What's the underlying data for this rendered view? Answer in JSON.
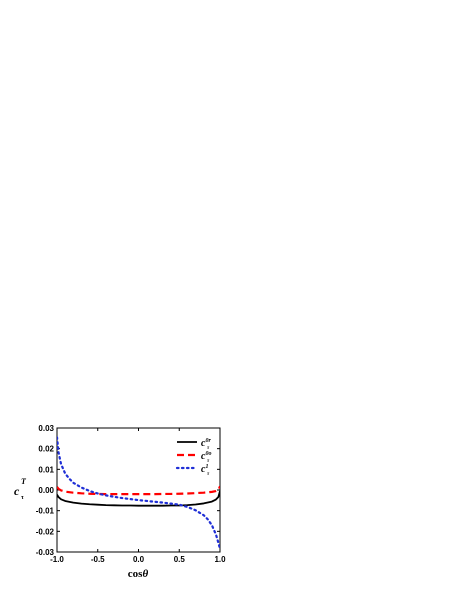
{
  "chart_data": {
    "type": "line",
    "xlabel": "cosθ",
    "xlabel_parts": {
      "base": "cos",
      "symbol": "θ"
    },
    "ylabel": "c_τ^T",
    "ylabel_parts": {
      "base": "c",
      "sub": "τ",
      "sup": "T"
    },
    "xlim": [
      -1.0,
      1.0
    ],
    "ylim": [
      -0.03,
      0.03
    ],
    "x_ticks": [
      "-1.0",
      "-0.5",
      "0.0",
      "0.5",
      "1.0"
    ],
    "x_tick_values": [
      -1.0,
      -0.5,
      0.0,
      0.5,
      1.0
    ],
    "y_ticks": [
      "0.03",
      "0.02",
      "0.01",
      "0.00",
      "-0.01",
      "-0.02",
      "-0.03"
    ],
    "y_tick_values": [
      0.03,
      0.02,
      0.01,
      0.0,
      -0.01,
      -0.02,
      -0.03
    ],
    "legend_position": "top-right",
    "grid": false,
    "series": [
      {
        "name": "c_τ^0r",
        "label_base": "c",
        "label_sub": "τ",
        "label_sup": "0r",
        "color": "#000000",
        "style": "solid",
        "x": [
          -1.0,
          -0.98,
          -0.95,
          -0.9,
          -0.8,
          -0.7,
          -0.6,
          -0.5,
          -0.4,
          -0.3,
          -0.2,
          -0.1,
          0.0,
          0.1,
          0.2,
          0.3,
          0.4,
          0.5,
          0.6,
          0.7,
          0.8,
          0.9,
          0.95,
          0.98,
          1.0
        ],
        "y": [
          -0.0022,
          -0.0035,
          -0.0045,
          -0.0053,
          -0.0061,
          -0.0066,
          -0.0069,
          -0.0071,
          -0.0073,
          -0.0074,
          -0.0075,
          -0.0075,
          -0.0076,
          -0.0076,
          -0.0076,
          -0.0076,
          -0.0075,
          -0.0075,
          -0.0073,
          -0.007,
          -0.0065,
          -0.0056,
          -0.0046,
          -0.0034,
          -0.0005
        ]
      },
      {
        "name": "c_τ^0o",
        "label_base": "c",
        "label_sub": "τ",
        "label_sup": "0o",
        "color": "#ff0000",
        "style": "dashed",
        "x": [
          -1.0,
          -0.98,
          -0.95,
          -0.9,
          -0.8,
          -0.7,
          -0.6,
          -0.5,
          -0.4,
          -0.3,
          -0.2,
          -0.1,
          0.0,
          0.1,
          0.2,
          0.3,
          0.4,
          0.5,
          0.6,
          0.7,
          0.8,
          0.9,
          0.95,
          0.98,
          1.0
        ],
        "y": [
          0.0015,
          0.0005,
          -0.0002,
          -0.0008,
          -0.0013,
          -0.0016,
          -0.0018,
          -0.0019,
          -0.002,
          -0.002,
          -0.002,
          -0.002,
          -0.002,
          -0.002,
          -0.002,
          -0.0019,
          -0.0019,
          -0.0018,
          -0.0017,
          -0.0015,
          -0.0013,
          -0.0009,
          -0.0005,
          0.0,
          0.0018
        ]
      },
      {
        "name": "c_τ^1",
        "label_base": "c",
        "label_sub": "τ",
        "label_sup": "1",
        "color": "#1f2fd6",
        "style": "dotted",
        "x": [
          -1.0,
          -0.98,
          -0.95,
          -0.9,
          -0.85,
          -0.8,
          -0.7,
          -0.6,
          -0.5,
          -0.4,
          -0.3,
          -0.2,
          -0.1,
          0.0,
          0.1,
          0.2,
          0.3,
          0.4,
          0.5,
          0.6,
          0.7,
          0.8,
          0.85,
          0.9,
          0.95,
          0.98,
          1.0
        ],
        "y": [
          0.0255,
          0.018,
          0.0125,
          0.008,
          0.0055,
          0.0035,
          0.0012,
          -0.0005,
          -0.0017,
          -0.0026,
          -0.0033,
          -0.0039,
          -0.0044,
          -0.0049,
          -0.0053,
          -0.0057,
          -0.0061,
          -0.0066,
          -0.0071,
          -0.0082,
          -0.0098,
          -0.0122,
          -0.0142,
          -0.017,
          -0.0215,
          -0.0255,
          -0.0285
        ]
      }
    ]
  }
}
